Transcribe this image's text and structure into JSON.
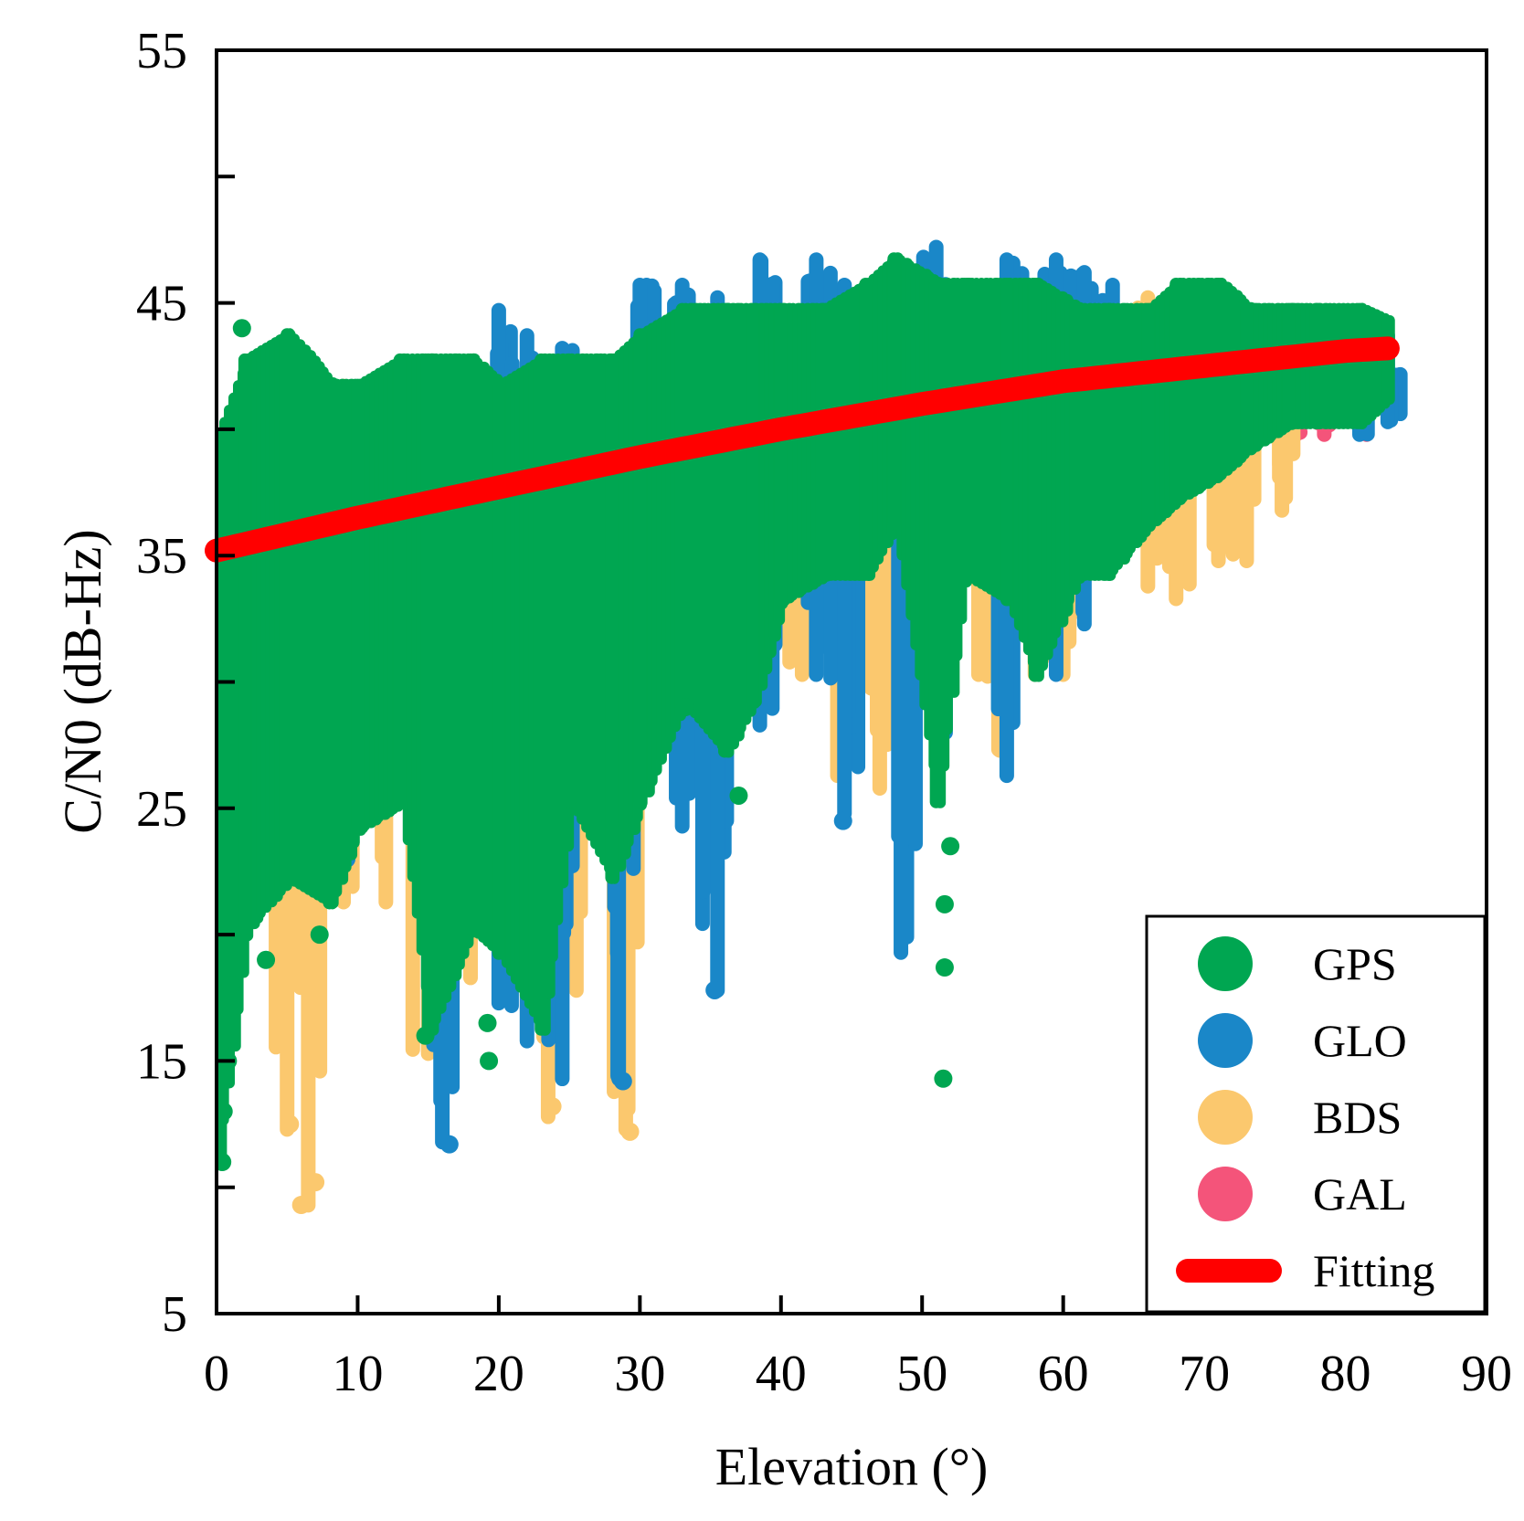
{
  "chart_data": {
    "type": "scatter",
    "title": "",
    "xlabel": "Elevation (°)",
    "ylabel": "C/N0 (dB-Hz)",
    "xlim": [
      0,
      90
    ],
    "ylim": [
      5,
      55
    ],
    "xticks": [
      0,
      10,
      20,
      30,
      40,
      50,
      60,
      70,
      80,
      90
    ],
    "yticks": [
      5,
      15,
      25,
      35,
      45,
      55
    ],
    "xtick_labels": [
      "0",
      "10",
      "20",
      "30",
      "40",
      "50",
      "60",
      "70",
      "80",
      "90"
    ],
    "ytick_labels": [
      "5",
      "15",
      "25",
      "35",
      "45",
      "55"
    ],
    "grid": false,
    "legend_position": "bottom-right",
    "series": [
      {
        "name": "GPS",
        "color": "#00a651",
        "bands": [
          {
            "x": 0,
            "min": 11,
            "max": 40
          },
          {
            "x": 2,
            "min": 20,
            "max": 43
          },
          {
            "x": 5,
            "min": 22,
            "max": 44
          },
          {
            "x": 8,
            "min": 21,
            "max": 42
          },
          {
            "x": 10,
            "min": 24,
            "max": 42
          },
          {
            "x": 13,
            "min": 25,
            "max": 43
          },
          {
            "x": 15,
            "min": 16,
            "max": 43
          },
          {
            "x": 18,
            "min": 20,
            "max": 43
          },
          {
            "x": 20,
            "min": 19,
            "max": 42
          },
          {
            "x": 23,
            "min": 16,
            "max": 43
          },
          {
            "x": 25,
            "min": 25,
            "max": 43
          },
          {
            "x": 28,
            "min": 22,
            "max": 43
          },
          {
            "x": 30,
            "min": 25,
            "max": 44
          },
          {
            "x": 33,
            "min": 29,
            "max": 45
          },
          {
            "x": 36,
            "min": 27,
            "max": 45
          },
          {
            "x": 38,
            "min": 29,
            "max": 45
          },
          {
            "x": 40,
            "min": 33,
            "max": 45
          },
          {
            "x": 43,
            "min": 34,
            "max": 45
          },
          {
            "x": 46,
            "min": 34,
            "max": 46
          },
          {
            "x": 48,
            "min": 36,
            "max": 47
          },
          {
            "x": 51,
            "min": 25,
            "max": 46
          },
          {
            "x": 53,
            "min": 34,
            "max": 46
          },
          {
            "x": 56,
            "min": 33,
            "max": 46
          },
          {
            "x": 58,
            "min": 30,
            "max": 46
          },
          {
            "x": 61,
            "min": 34,
            "max": 45
          },
          {
            "x": 63,
            "min": 34,
            "max": 45
          },
          {
            "x": 66,
            "min": 36,
            "max": 45
          },
          {
            "x": 68,
            "min": 37,
            "max": 46
          },
          {
            "x": 71,
            "min": 38,
            "max": 46
          },
          {
            "x": 73,
            "min": 39,
            "max": 45
          },
          {
            "x": 76,
            "min": 40,
            "max": 45
          },
          {
            "x": 78,
            "min": 40,
            "max": 45
          },
          {
            "x": 81,
            "min": 40,
            "max": 45
          },
          {
            "x": 83,
            "min": 41,
            "max": 44.5
          }
        ],
        "points": [
          {
            "x": 0.4,
            "y": 11
          },
          {
            "x": 0.5,
            "y": 13
          },
          {
            "x": 0.8,
            "y": 15
          },
          {
            "x": 1,
            "y": 18
          },
          {
            "x": 1.8,
            "y": 44
          },
          {
            "x": 3.5,
            "y": 19
          },
          {
            "x": 7.3,
            "y": 20
          },
          {
            "x": 14.8,
            "y": 16
          },
          {
            "x": 19.3,
            "y": 15
          },
          {
            "x": 19.2,
            "y": 16.5
          },
          {
            "x": 51.5,
            "y": 14.3
          },
          {
            "x": 51.6,
            "y": 18.7
          },
          {
            "x": 51.6,
            "y": 21.2
          },
          {
            "x": 52,
            "y": 23.5
          },
          {
            "x": 37,
            "y": 25.5
          },
          {
            "x": 33.2,
            "y": 29
          }
        ]
      },
      {
        "name": "GLO",
        "color": "#1a87c8",
        "bands": [
          {
            "x": 16,
            "min": 11.5,
            "max": 25
          },
          {
            "x": 20,
            "min": 17,
            "max": 45
          },
          {
            "x": 22,
            "min": 15.5,
            "max": 44
          },
          {
            "x": 24.5,
            "min": 14,
            "max": 43.5
          },
          {
            "x": 28.5,
            "min": 14,
            "max": 43
          },
          {
            "x": 30,
            "min": 25,
            "max": 46
          },
          {
            "x": 33,
            "min": 24,
            "max": 46
          },
          {
            "x": 35.5,
            "min": 17.5,
            "max": 45.5
          },
          {
            "x": 38.5,
            "min": 28,
            "max": 47
          },
          {
            "x": 42.5,
            "min": 30,
            "max": 47
          },
          {
            "x": 44.5,
            "min": 24.5,
            "max": 46
          },
          {
            "x": 48.5,
            "min": 19,
            "max": 46.5
          },
          {
            "x": 51,
            "min": 27,
            "max": 47.5
          },
          {
            "x": 56,
            "min": 26,
            "max": 47
          },
          {
            "x": 59.5,
            "min": 30,
            "max": 47
          },
          {
            "x": 61.5,
            "min": 32,
            "max": 46.5
          },
          {
            "x": 63.5,
            "min": 36,
            "max": 46
          },
          {
            "x": 81,
            "min": 39.5,
            "max": 44
          },
          {
            "x": 83,
            "min": 40,
            "max": 44
          }
        ],
        "points": [
          {
            "x": 9.2,
            "y": 23
          },
          {
            "x": 9.3,
            "y": 24
          },
          {
            "x": 16.5,
            "y": 11.7
          },
          {
            "x": 35.3,
            "y": 17.8
          },
          {
            "x": 44.4,
            "y": 24.5
          },
          {
            "x": 28.8,
            "y": 14.2
          }
        ]
      },
      {
        "name": "BDS",
        "color": "#fbc86e",
        "bands": [
          {
            "x": 0.5,
            "min": 22,
            "max": 36
          },
          {
            "x": 2,
            "min": 23,
            "max": 40
          },
          {
            "x": 5,
            "min": 12,
            "max": 43
          },
          {
            "x": 6.5,
            "min": 9,
            "max": 42
          },
          {
            "x": 9,
            "min": 21,
            "max": 42
          },
          {
            "x": 12,
            "min": 21,
            "max": 42
          },
          {
            "x": 15,
            "min": 15,
            "max": 40
          },
          {
            "x": 18,
            "min": 18,
            "max": 40
          },
          {
            "x": 23.5,
            "min": 12.5,
            "max": 40
          },
          {
            "x": 25.5,
            "min": 17.5,
            "max": 40
          },
          {
            "x": 29,
            "min": 12,
            "max": 39
          },
          {
            "x": 38.5,
            "min": 29,
            "max": 42
          },
          {
            "x": 41.5,
            "min": 30,
            "max": 43
          },
          {
            "x": 44,
            "min": 26,
            "max": 44
          },
          {
            "x": 47,
            "min": 25.5,
            "max": 44
          },
          {
            "x": 54,
            "min": 30,
            "max": 44
          },
          {
            "x": 55.5,
            "min": 27,
            "max": 44
          },
          {
            "x": 58,
            "min": 30,
            "max": 45
          },
          {
            "x": 60,
            "min": 30,
            "max": 45
          },
          {
            "x": 66,
            "min": 33.5,
            "max": 45.5
          },
          {
            "x": 68,
            "min": 33,
            "max": 45.5
          },
          {
            "x": 71,
            "min": 34.5,
            "max": 45
          },
          {
            "x": 73,
            "min": 34.5,
            "max": 44.5
          },
          {
            "x": 75.5,
            "min": 36.5,
            "max": 44
          }
        ],
        "points": [
          {
            "x": 6,
            "y": 9.3
          },
          {
            "x": 7,
            "y": 10.2
          },
          {
            "x": 5.2,
            "y": 12.5
          },
          {
            "x": 29.3,
            "y": 12.2
          },
          {
            "x": 23.8,
            "y": 13.2
          },
          {
            "x": 4.6,
            "y": 16.5
          }
        ]
      },
      {
        "name": "GAL",
        "color": "#f4547a",
        "bands": [
          {
            "x": 76.5,
            "min": 39.5,
            "max": 42
          },
          {
            "x": 78.5,
            "min": 39.5,
            "max": 42
          },
          {
            "x": 81.5,
            "min": 39.5,
            "max": 42
          }
        ],
        "points": []
      }
    ],
    "fit": {
      "name": "Fitting",
      "color": "#ff0000",
      "x": [
        0,
        10,
        20,
        30,
        40,
        50,
        60,
        70,
        80,
        83
      ],
      "y": [
        35.2,
        36.5,
        37.7,
        38.9,
        40.0,
        41.0,
        41.9,
        42.5,
        43.1,
        43.2
      ]
    },
    "legend": [
      "GPS",
      "GLO",
      "BDS",
      "GAL",
      "Fitting"
    ]
  }
}
